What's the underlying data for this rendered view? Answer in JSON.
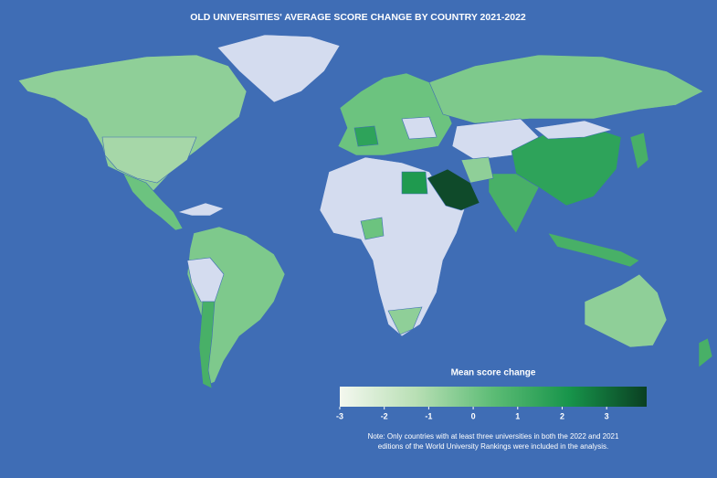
{
  "title": "OLD UNIVERSITIES' AVERAGE SCORE CHANGE BY COUNTRY 2021-2022",
  "legend": {
    "title": "Mean score change",
    "lim": [
      -3,
      3.9
    ],
    "ticks": [
      -3,
      -2,
      -1,
      0,
      1,
      2,
      3
    ],
    "colors": [
      "#f4f8ef",
      "#b8dfb4",
      "#5cbc75",
      "#17944a",
      "#0a3f22"
    ]
  },
  "note": [
    "Note: Only countries with at least three universities in both the 2022 and 2021",
    "editions of the World University Rankings were included in the analysis."
  ]
}
